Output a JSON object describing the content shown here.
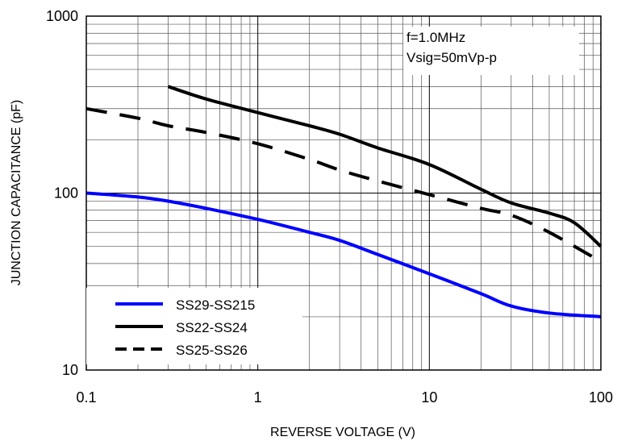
{
  "chart_data": {
    "type": "line",
    "xlabel": "REVERSE VOLTAGE (V)",
    "ylabel": "JUNCTION CAPACITANCE (pF)",
    "xscale": "log",
    "yscale": "log",
    "xlim": [
      0.1,
      100
    ],
    "ylim": [
      10,
      1000
    ],
    "xticks": [
      "0.1",
      "1",
      "10",
      "100"
    ],
    "yticks": [
      "10",
      "100",
      "1000"
    ],
    "grid": true,
    "legend_position": "bottom-left",
    "annotations": [
      "f=1.0MHz",
      "Vsig=50mVp-p"
    ],
    "series": [
      {
        "name": "SS29-SS215",
        "color": "#0000ff",
        "style": "solid",
        "x": [
          0.1,
          0.2,
          0.3,
          0.5,
          1,
          2,
          3,
          5,
          10,
          20,
          30,
          50,
          100
        ],
        "y": [
          100,
          95,
          90,
          82,
          71,
          60,
          54,
          45,
          35,
          27,
          23,
          21,
          20
        ]
      },
      {
        "name": "SS22-SS24",
        "color": "#000000",
        "style": "solid",
        "x": [
          0.3,
          0.5,
          1,
          2,
          3,
          5,
          10,
          20,
          30,
          50,
          70,
          100
        ],
        "y": [
          400,
          340,
          285,
          240,
          215,
          180,
          145,
          105,
          88,
          77,
          68,
          50
        ]
      },
      {
        "name": "SS25-SS26",
        "color": "#000000",
        "style": "dashed",
        "x": [
          0.1,
          0.2,
          0.3,
          0.5,
          1,
          2,
          3,
          5,
          10,
          20,
          30,
          50,
          100
        ],
        "y": [
          300,
          265,
          240,
          220,
          190,
          155,
          135,
          117,
          98,
          82,
          75,
          60,
          41
        ]
      }
    ]
  }
}
